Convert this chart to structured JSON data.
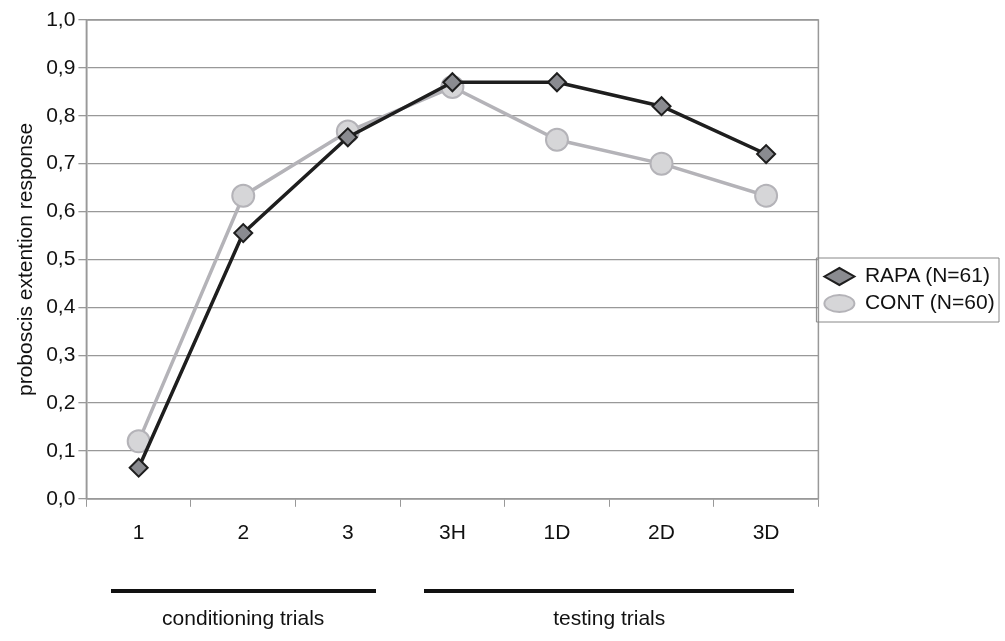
{
  "chart_data": {
    "type": "line",
    "ylabel": "proboscis extention response",
    "categories": [
      "1",
      "2",
      "3",
      "3H",
      "1D",
      "2D",
      "3D"
    ],
    "series": [
      {
        "name": "RAPA (N=61)",
        "color": "#1e1e1e",
        "marker": "diamond",
        "values": [
          0.065,
          0.555,
          0.755,
          0.87,
          0.87,
          0.82,
          0.72
        ]
      },
      {
        "name": "CONT (N=60)",
        "color": "#b4b3b8",
        "marker": "circle",
        "values": [
          0.12,
          0.633,
          0.767,
          0.86,
          0.75,
          0.7,
          0.633
        ]
      }
    ],
    "ylim": [
      0,
      1
    ],
    "yticks": [
      {
        "value": 0,
        "label": "0,0"
      },
      {
        "value": 0.1,
        "label": "0,1"
      },
      {
        "value": 0.2,
        "label": "0,2"
      },
      {
        "value": 0.3,
        "label": "0,3"
      },
      {
        "value": 0.4,
        "label": "0,4"
      },
      {
        "value": 0.5,
        "label": "0,5"
      },
      {
        "value": 0.6,
        "label": "0,6"
      },
      {
        "value": 0.7,
        "label": "0,7"
      },
      {
        "value": 0.8,
        "label": "0,8"
      },
      {
        "value": 0.9,
        "label": "0,9"
      },
      {
        "value": 1,
        "label": "1,0"
      }
    ],
    "grid": "y",
    "legend": "right",
    "line_style": "solid",
    "annotations": [
      "conditioning trials",
      "testing trials"
    ]
  }
}
